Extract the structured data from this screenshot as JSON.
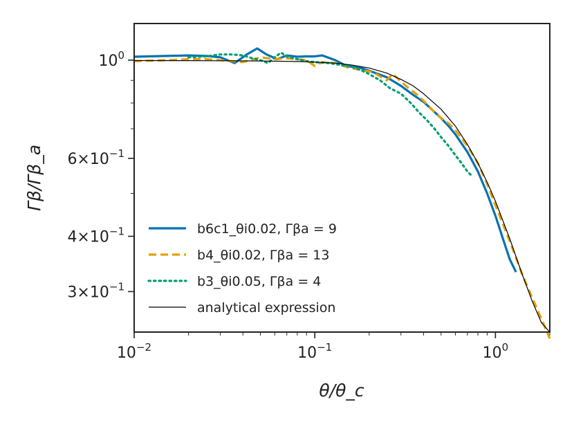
{
  "chart_data": {
    "type": "line",
    "title": "",
    "xlabel": "θ/θ_c",
    "ylabel": "Γβ/Γβ_a",
    "xscale": "log",
    "yscale": "log",
    "xlim": [
      0.01,
      2.0
    ],
    "ylim": [
      0.243,
      1.21
    ],
    "grid": false,
    "legend_position": "lower-left",
    "x_ticks": [
      {
        "value": 0.01,
        "base": "10",
        "exp": "−2"
      },
      {
        "value": 0.1,
        "base": "10",
        "exp": "−1"
      },
      {
        "value": 1.0,
        "base": "10",
        "exp": "0"
      }
    ],
    "y_ticks": [
      {
        "value": 1.0,
        "base": "10",
        "exp": "0"
      },
      {
        "value": 0.6,
        "base": "6×10",
        "exp": "−1"
      },
      {
        "value": 0.4,
        "base": "4×10",
        "exp": "−1"
      },
      {
        "value": 0.3,
        "base": "3×10",
        "exp": "−1"
      }
    ],
    "series": [
      {
        "name": "b6c1_θi0.02, Γβa = 9",
        "color": "#0072B2",
        "style": "solid",
        "x": [
          0.01,
          0.015,
          0.02,
          0.025,
          0.03,
          0.036,
          0.042,
          0.048,
          0.054,
          0.062,
          0.07,
          0.08,
          0.09,
          0.1,
          0.11,
          0.13,
          0.15,
          0.18,
          0.21,
          0.25,
          0.3,
          0.35,
          0.4,
          0.45,
          0.5,
          0.55,
          0.6,
          0.7,
          0.8,
          0.9,
          1.0,
          1.1,
          1.2,
          1.3
        ],
        "y": [
          1.018,
          1.022,
          1.025,
          1.022,
          1.015,
          0.985,
          1.03,
          1.063,
          1.03,
          1.005,
          1.025,
          1.018,
          1.02,
          1.02,
          1.025,
          1.0,
          0.97,
          0.96,
          0.94,
          0.915,
          0.875,
          0.835,
          0.805,
          0.77,
          0.74,
          0.71,
          0.68,
          0.62,
          0.56,
          0.5,
          0.445,
          0.395,
          0.355,
          0.332
        ]
      },
      {
        "name": "b4_θi0.02, Γβa = 13",
        "color": "#E69F00",
        "style": "dashed",
        "x": [
          0.01,
          0.015,
          0.02,
          0.025,
          0.03,
          0.04,
          0.05,
          0.06,
          0.07,
          0.08,
          0.09,
          0.1,
          0.11,
          0.13,
          0.15,
          0.18,
          0.21,
          0.25,
          0.27,
          0.3,
          0.33,
          0.37,
          0.4,
          0.45,
          0.5,
          0.55,
          0.6,
          0.7,
          0.8,
          0.9,
          1.0,
          1.2,
          1.4,
          1.6,
          1.8,
          2.0
        ],
        "y": [
          0.995,
          1.0,
          1.005,
          1.005,
          1.0,
          0.99,
          1.015,
          1.005,
          1.01,
          1.005,
          1.0,
          0.97,
          0.99,
          0.985,
          0.965,
          0.95,
          0.94,
          0.9,
          0.93,
          0.895,
          0.865,
          0.835,
          0.81,
          0.77,
          0.74,
          0.72,
          0.695,
          0.64,
          0.585,
          0.525,
          0.47,
          0.39,
          0.33,
          0.29,
          0.26,
          0.235
        ]
      },
      {
        "name": "b3_θi0.05, Γβa = 4",
        "color": "#009E73",
        "style": "dotted",
        "x": [
          0.02,
          0.025,
          0.03,
          0.035,
          0.04,
          0.045,
          0.05,
          0.055,
          0.06,
          0.065,
          0.07,
          0.08,
          0.09,
          0.1,
          0.12,
          0.14,
          0.16,
          0.18,
          0.2,
          0.23,
          0.26,
          0.3,
          0.34,
          0.38,
          0.42,
          0.46,
          0.5,
          0.55,
          0.6,
          0.65,
          0.7,
          0.75
        ],
        "y": [
          1.015,
          1.02,
          1.03,
          1.03,
          1.025,
          1.01,
          1.0,
          0.985,
          1.015,
          1.04,
          1.02,
          1.005,
          0.995,
          0.99,
          0.985,
          0.975,
          0.965,
          0.95,
          0.93,
          0.9,
          0.865,
          0.84,
          0.8,
          0.76,
          0.73,
          0.7,
          0.67,
          0.64,
          0.61,
          0.585,
          0.56,
          0.545
        ]
      },
      {
        "name": "analytical expression",
        "color": "#000000",
        "style": "thin",
        "x": [
          0.01,
          0.03,
          0.05,
          0.08,
          0.1,
          0.13,
          0.16,
          0.2,
          0.25,
          0.3,
          0.35,
          0.4,
          0.5,
          0.6,
          0.7,
          0.8,
          0.9,
          1.0,
          1.2,
          1.4,
          1.6,
          1.8,
          2.0
        ],
        "y": [
          0.998,
          0.997,
          0.996,
          0.993,
          0.99,
          0.985,
          0.975,
          0.96,
          0.935,
          0.905,
          0.875,
          0.84,
          0.775,
          0.71,
          0.645,
          0.585,
          0.53,
          0.48,
          0.395,
          0.33,
          0.285,
          0.255,
          0.243
        ]
      }
    ]
  }
}
